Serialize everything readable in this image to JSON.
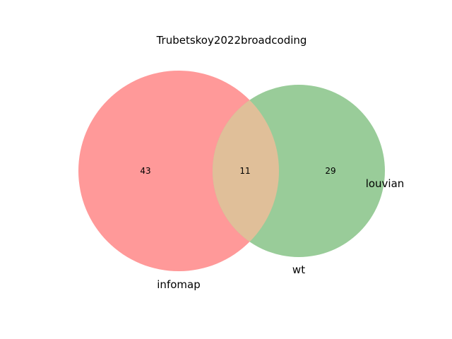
{
  "title": "Trubetskoy2022broadcoding",
  "sets": [
    {
      "name": "infomap",
      "only_count": "43",
      "color": "#ff9999"
    },
    {
      "name": "wt",
      "only_count": "29",
      "color": "#99cc99"
    }
  ],
  "intersection": {
    "count": "11",
    "color": "#e0bf99"
  },
  "extra_label": "louvian",
  "chart_data": {
    "type": "venn",
    "title": "Trubetskoy2022broadcoding",
    "sets": [
      "infomap",
      "wt"
    ],
    "counts": {
      "infomap_only": 43,
      "wt_only": 29,
      "infomap_and_wt": 11
    },
    "extra_labels": [
      "louvian"
    ]
  }
}
